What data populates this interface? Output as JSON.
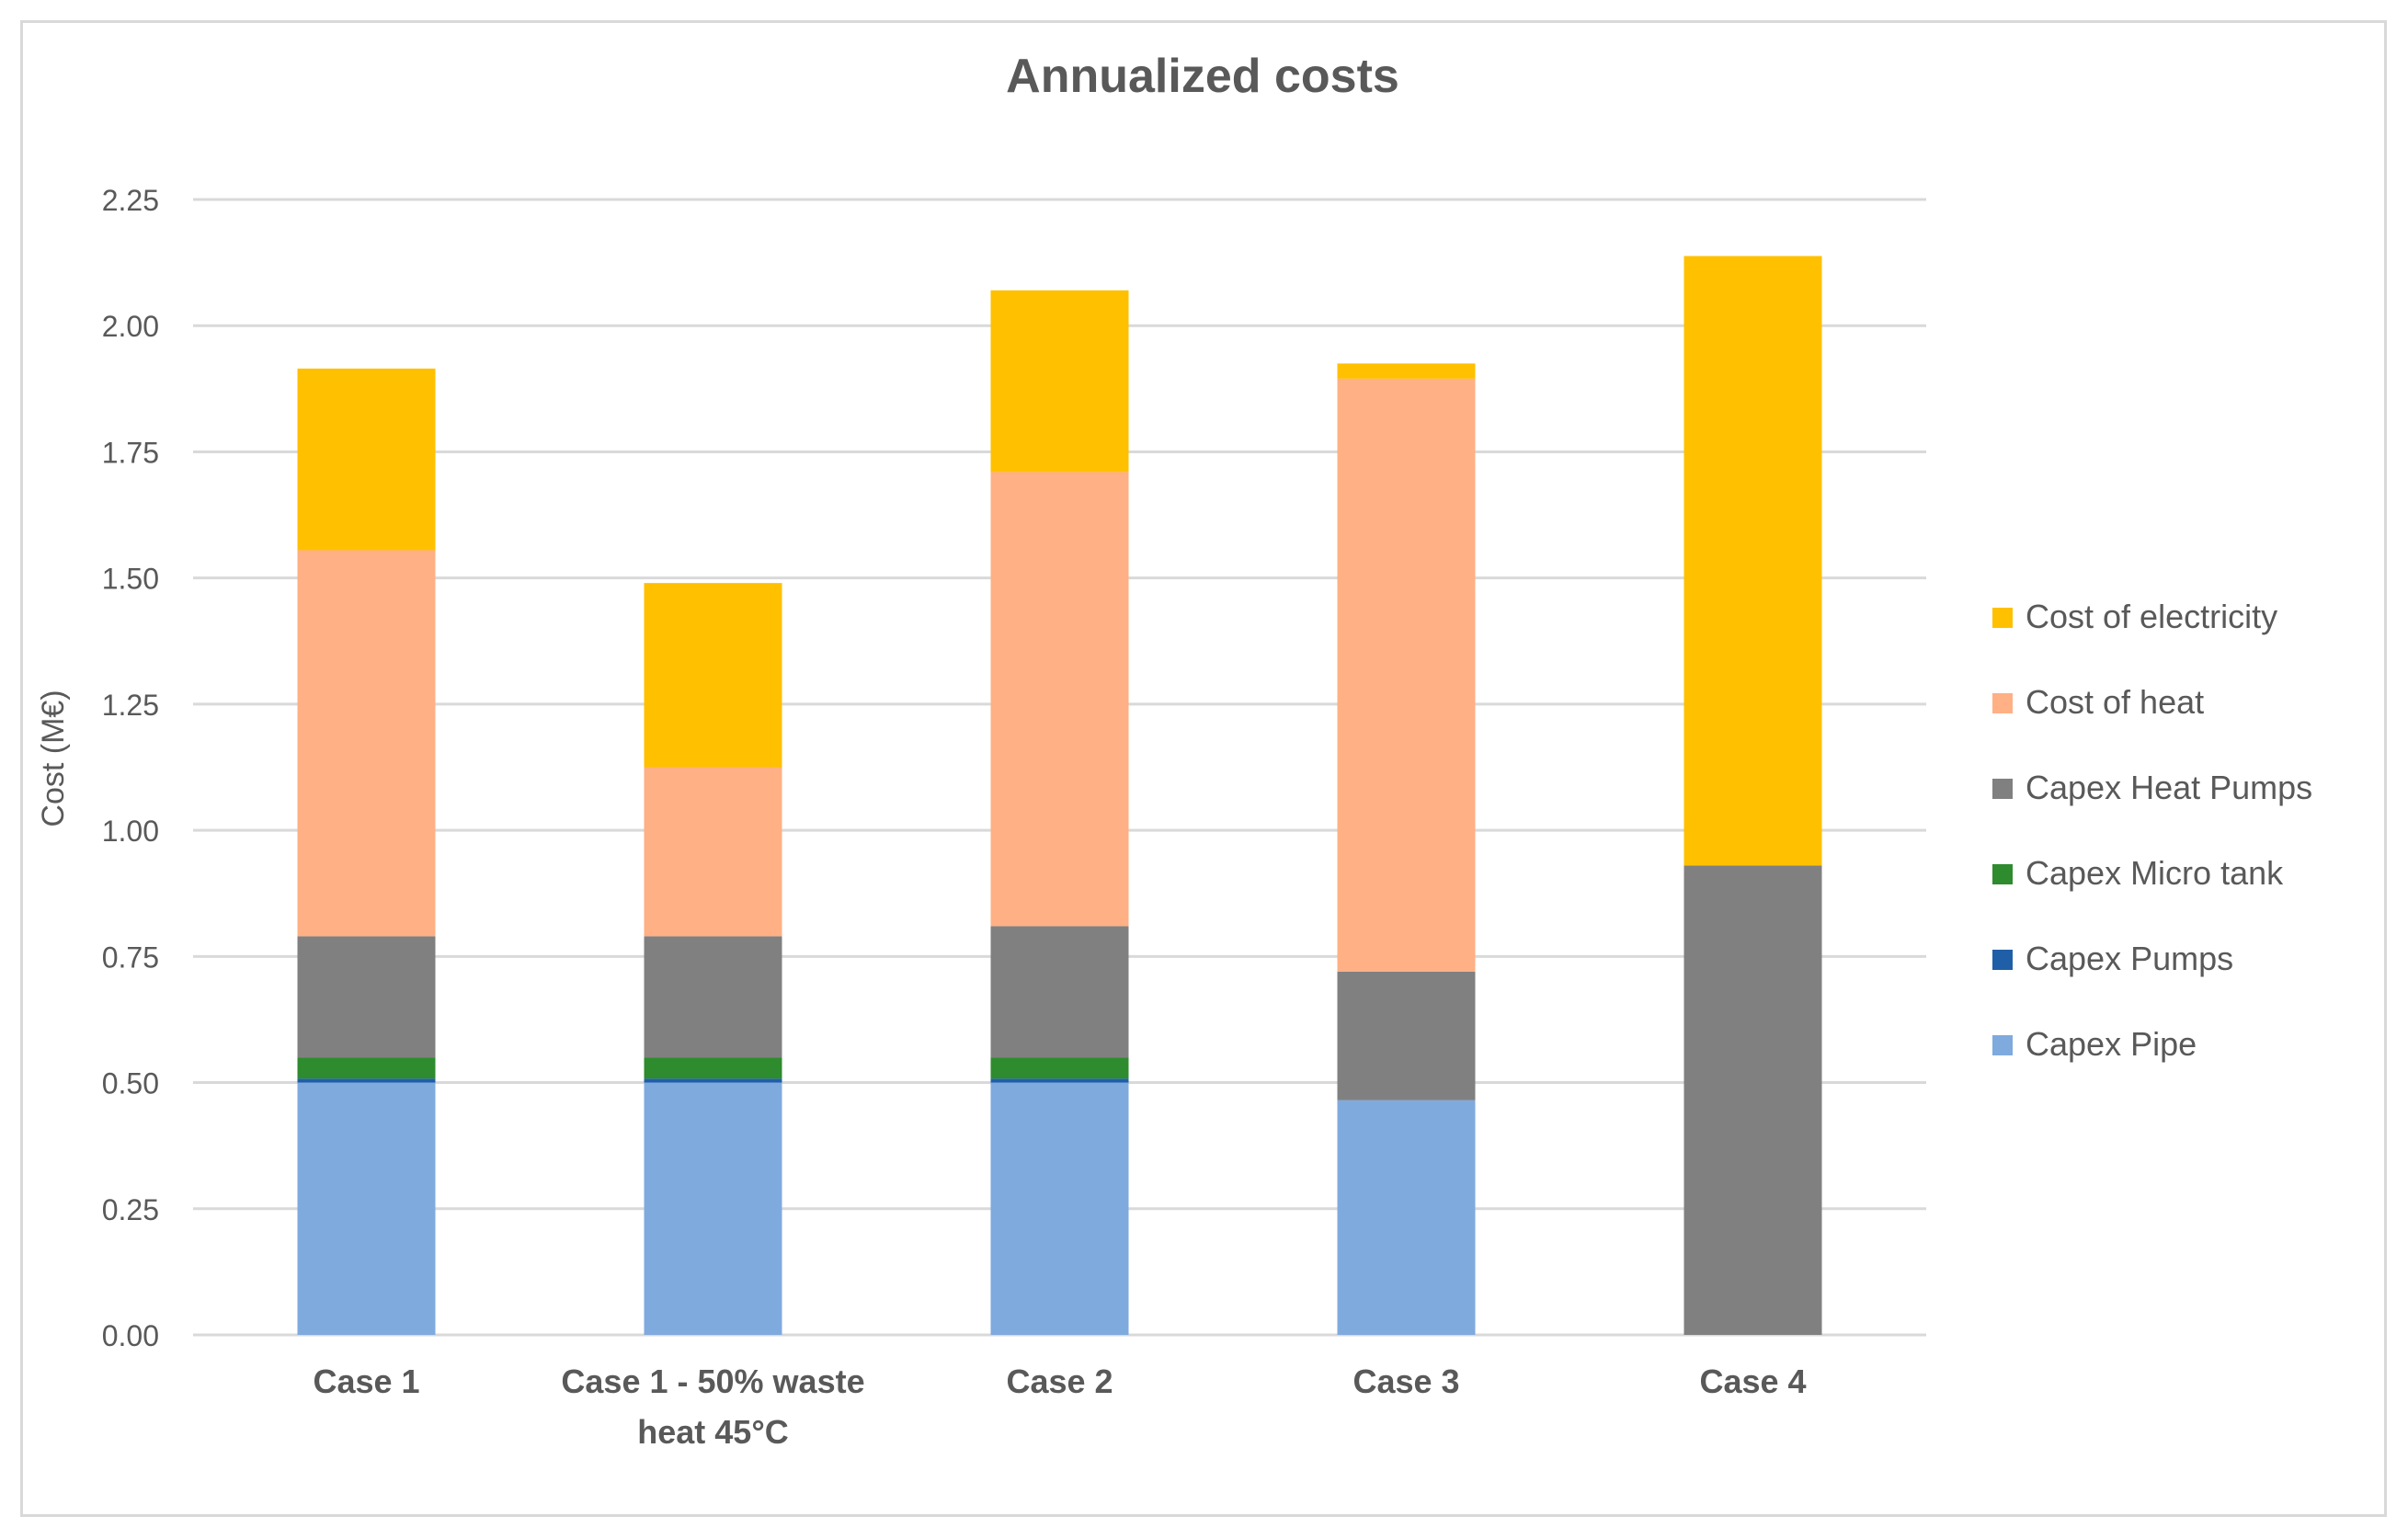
{
  "chart_data": {
    "type": "bar",
    "stacked": true,
    "title": "Annualized costs",
    "xlabel": "",
    "ylabel": "Cost (M€)",
    "ylim": [
      0,
      2.25
    ],
    "yticks": [
      0,
      0.25,
      0.5,
      0.75,
      1.0,
      1.25,
      1.5,
      1.75,
      2.0,
      2.25
    ],
    "ytick_labels": [
      "0.00",
      "0.25",
      "0.50",
      "0.75",
      "1.00",
      "1.25",
      "1.50",
      "1.75",
      "2.00",
      "2.25"
    ],
    "grid": true,
    "legend_position": "right",
    "categories": [
      [
        "Case 1"
      ],
      [
        "Case 1 - 50% waste",
        "heat 45°C"
      ],
      [
        "Case 2"
      ],
      [
        "Case 3"
      ],
      [
        "Case 4"
      ]
    ],
    "series": [
      {
        "name": "Capex Pipe",
        "color": "#7faade",
        "values": [
          0.5,
          0.5,
          0.5,
          0.465,
          0.0
        ]
      },
      {
        "name": "Capex Pumps",
        "color": "#1f5fa8",
        "values": [
          0.008,
          0.008,
          0.008,
          0.0,
          0.0
        ]
      },
      {
        "name": "Capex Micro tank",
        "color": "#2e8b2e",
        "values": [
          0.042,
          0.042,
          0.042,
          0.0,
          0.0
        ]
      },
      {
        "name": "Capex Heat Pumps",
        "color": "#808080",
        "values": [
          0.24,
          0.24,
          0.26,
          0.255,
          0.93
        ]
      },
      {
        "name": "Cost of heat",
        "color": "#ffb084",
        "values": [
          0.765,
          0.335,
          0.9,
          1.175,
          0.0
        ]
      },
      {
        "name": "Cost of electricity",
        "color": "#ffc000",
        "values": [
          0.36,
          0.365,
          0.36,
          0.03,
          1.208
        ]
      }
    ]
  }
}
